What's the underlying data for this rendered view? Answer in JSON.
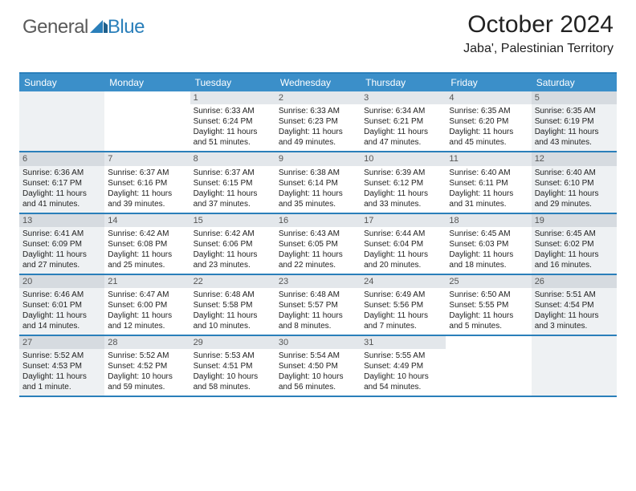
{
  "brand": {
    "part1": "General",
    "part2": "Blue"
  },
  "title": "October 2024",
  "location": "Jaba', Palestinian Territory",
  "colors": {
    "header_bg": "#3b8fc9",
    "header_text": "#ffffff",
    "rule": "#2a7fba",
    "shade": "#eef1f3",
    "daynum_bg": "#e3e7eb",
    "text": "#222222",
    "logo_gray": "#5a5a5a",
    "logo_blue": "#2a7fba"
  },
  "day_headers": [
    "Sunday",
    "Monday",
    "Tuesday",
    "Wednesday",
    "Thursday",
    "Friday",
    "Saturday"
  ],
  "weeks": [
    [
      {
        "num": "",
        "shaded": true,
        "sunrise": "",
        "sunset": "",
        "daylight": ""
      },
      {
        "num": "",
        "shaded": false,
        "sunrise": "",
        "sunset": "",
        "daylight": ""
      },
      {
        "num": "1",
        "shaded": false,
        "sunrise": "Sunrise: 6:33 AM",
        "sunset": "Sunset: 6:24 PM",
        "daylight": "Daylight: 11 hours and 51 minutes."
      },
      {
        "num": "2",
        "shaded": false,
        "sunrise": "Sunrise: 6:33 AM",
        "sunset": "Sunset: 6:23 PM",
        "daylight": "Daylight: 11 hours and 49 minutes."
      },
      {
        "num": "3",
        "shaded": false,
        "sunrise": "Sunrise: 6:34 AM",
        "sunset": "Sunset: 6:21 PM",
        "daylight": "Daylight: 11 hours and 47 minutes."
      },
      {
        "num": "4",
        "shaded": false,
        "sunrise": "Sunrise: 6:35 AM",
        "sunset": "Sunset: 6:20 PM",
        "daylight": "Daylight: 11 hours and 45 minutes."
      },
      {
        "num": "5",
        "shaded": true,
        "sunrise": "Sunrise: 6:35 AM",
        "sunset": "Sunset: 6:19 PM",
        "daylight": "Daylight: 11 hours and 43 minutes."
      }
    ],
    [
      {
        "num": "6",
        "shaded": true,
        "sunrise": "Sunrise: 6:36 AM",
        "sunset": "Sunset: 6:17 PM",
        "daylight": "Daylight: 11 hours and 41 minutes."
      },
      {
        "num": "7",
        "shaded": false,
        "sunrise": "Sunrise: 6:37 AM",
        "sunset": "Sunset: 6:16 PM",
        "daylight": "Daylight: 11 hours and 39 minutes."
      },
      {
        "num": "8",
        "shaded": false,
        "sunrise": "Sunrise: 6:37 AM",
        "sunset": "Sunset: 6:15 PM",
        "daylight": "Daylight: 11 hours and 37 minutes."
      },
      {
        "num": "9",
        "shaded": false,
        "sunrise": "Sunrise: 6:38 AM",
        "sunset": "Sunset: 6:14 PM",
        "daylight": "Daylight: 11 hours and 35 minutes."
      },
      {
        "num": "10",
        "shaded": false,
        "sunrise": "Sunrise: 6:39 AM",
        "sunset": "Sunset: 6:12 PM",
        "daylight": "Daylight: 11 hours and 33 minutes."
      },
      {
        "num": "11",
        "shaded": false,
        "sunrise": "Sunrise: 6:40 AM",
        "sunset": "Sunset: 6:11 PM",
        "daylight": "Daylight: 11 hours and 31 minutes."
      },
      {
        "num": "12",
        "shaded": true,
        "sunrise": "Sunrise: 6:40 AM",
        "sunset": "Sunset: 6:10 PM",
        "daylight": "Daylight: 11 hours and 29 minutes."
      }
    ],
    [
      {
        "num": "13",
        "shaded": true,
        "sunrise": "Sunrise: 6:41 AM",
        "sunset": "Sunset: 6:09 PM",
        "daylight": "Daylight: 11 hours and 27 minutes."
      },
      {
        "num": "14",
        "shaded": false,
        "sunrise": "Sunrise: 6:42 AM",
        "sunset": "Sunset: 6:08 PM",
        "daylight": "Daylight: 11 hours and 25 minutes."
      },
      {
        "num": "15",
        "shaded": false,
        "sunrise": "Sunrise: 6:42 AM",
        "sunset": "Sunset: 6:06 PM",
        "daylight": "Daylight: 11 hours and 23 minutes."
      },
      {
        "num": "16",
        "shaded": false,
        "sunrise": "Sunrise: 6:43 AM",
        "sunset": "Sunset: 6:05 PM",
        "daylight": "Daylight: 11 hours and 22 minutes."
      },
      {
        "num": "17",
        "shaded": false,
        "sunrise": "Sunrise: 6:44 AM",
        "sunset": "Sunset: 6:04 PM",
        "daylight": "Daylight: 11 hours and 20 minutes."
      },
      {
        "num": "18",
        "shaded": false,
        "sunrise": "Sunrise: 6:45 AM",
        "sunset": "Sunset: 6:03 PM",
        "daylight": "Daylight: 11 hours and 18 minutes."
      },
      {
        "num": "19",
        "shaded": true,
        "sunrise": "Sunrise: 6:45 AM",
        "sunset": "Sunset: 6:02 PM",
        "daylight": "Daylight: 11 hours and 16 minutes."
      }
    ],
    [
      {
        "num": "20",
        "shaded": true,
        "sunrise": "Sunrise: 6:46 AM",
        "sunset": "Sunset: 6:01 PM",
        "daylight": "Daylight: 11 hours and 14 minutes."
      },
      {
        "num": "21",
        "shaded": false,
        "sunrise": "Sunrise: 6:47 AM",
        "sunset": "Sunset: 6:00 PM",
        "daylight": "Daylight: 11 hours and 12 minutes."
      },
      {
        "num": "22",
        "shaded": false,
        "sunrise": "Sunrise: 6:48 AM",
        "sunset": "Sunset: 5:58 PM",
        "daylight": "Daylight: 11 hours and 10 minutes."
      },
      {
        "num": "23",
        "shaded": false,
        "sunrise": "Sunrise: 6:48 AM",
        "sunset": "Sunset: 5:57 PM",
        "daylight": "Daylight: 11 hours and 8 minutes."
      },
      {
        "num": "24",
        "shaded": false,
        "sunrise": "Sunrise: 6:49 AM",
        "sunset": "Sunset: 5:56 PM",
        "daylight": "Daylight: 11 hours and 7 minutes."
      },
      {
        "num": "25",
        "shaded": false,
        "sunrise": "Sunrise: 6:50 AM",
        "sunset": "Sunset: 5:55 PM",
        "daylight": "Daylight: 11 hours and 5 minutes."
      },
      {
        "num": "26",
        "shaded": true,
        "sunrise": "Sunrise: 5:51 AM",
        "sunset": "Sunset: 4:54 PM",
        "daylight": "Daylight: 11 hours and 3 minutes."
      }
    ],
    [
      {
        "num": "27",
        "shaded": true,
        "sunrise": "Sunrise: 5:52 AM",
        "sunset": "Sunset: 4:53 PM",
        "daylight": "Daylight: 11 hours and 1 minute."
      },
      {
        "num": "28",
        "shaded": false,
        "sunrise": "Sunrise: 5:52 AM",
        "sunset": "Sunset: 4:52 PM",
        "daylight": "Daylight: 10 hours and 59 minutes."
      },
      {
        "num": "29",
        "shaded": false,
        "sunrise": "Sunrise: 5:53 AM",
        "sunset": "Sunset: 4:51 PM",
        "daylight": "Daylight: 10 hours and 58 minutes."
      },
      {
        "num": "30",
        "shaded": false,
        "sunrise": "Sunrise: 5:54 AM",
        "sunset": "Sunset: 4:50 PM",
        "daylight": "Daylight: 10 hours and 56 minutes."
      },
      {
        "num": "31",
        "shaded": false,
        "sunrise": "Sunrise: 5:55 AM",
        "sunset": "Sunset: 4:49 PM",
        "daylight": "Daylight: 10 hours and 54 minutes."
      },
      {
        "num": "",
        "shaded": false,
        "sunrise": "",
        "sunset": "",
        "daylight": ""
      },
      {
        "num": "",
        "shaded": true,
        "sunrise": "",
        "sunset": "",
        "daylight": ""
      }
    ]
  ]
}
